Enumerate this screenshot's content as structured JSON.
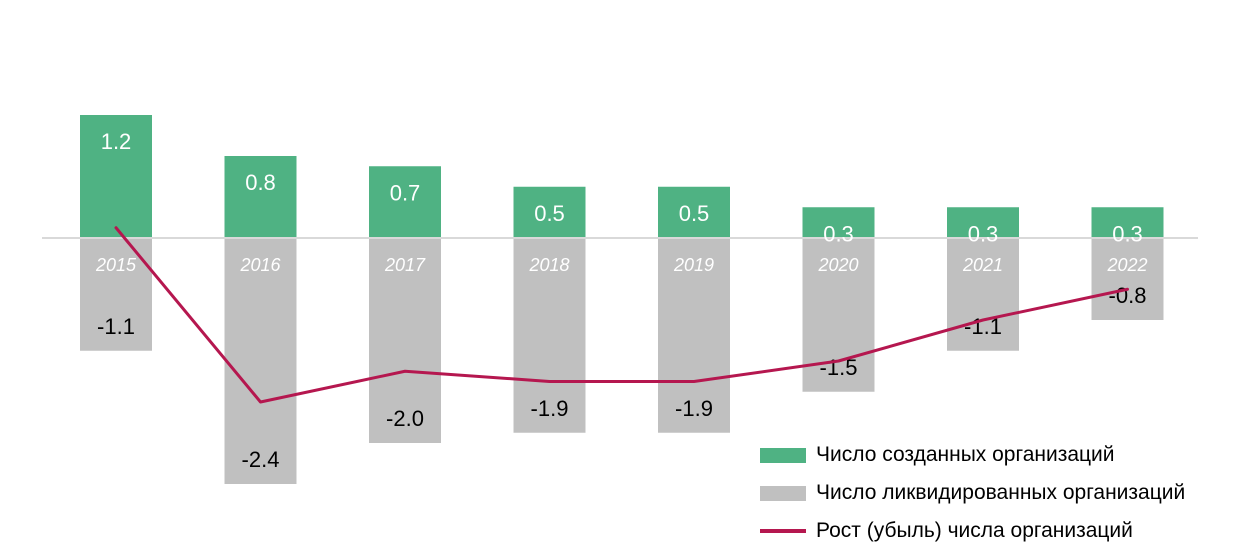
{
  "chart_data": {
    "type": "bar",
    "categories": [
      "2015",
      "2016",
      "2017",
      "2018",
      "2019",
      "2020",
      "2021",
      "2022"
    ],
    "series": [
      {
        "name": "Число созданных организаций",
        "kind": "bar",
        "color": "#4fb283",
        "values": [
          1.2,
          0.8,
          0.7,
          0.5,
          0.5,
          0.3,
          0.3,
          0.3
        ],
        "labels": [
          "1.2",
          "0.8",
          "0.7",
          "0.5",
          "0.5",
          "0.3",
          "0.3",
          "0.3"
        ]
      },
      {
        "name": "Число ликвидированных организаций",
        "kind": "bar",
        "color": "#c0c0c0",
        "values": [
          -1.1,
          -2.4,
          -2.0,
          -1.9,
          -1.9,
          -1.5,
          -1.1,
          -0.8
        ],
        "labels": [
          "-1.1",
          "-2.4",
          "-2.0",
          "-1.9",
          "-1.9",
          "-1.5",
          "-1.1",
          "-0.8"
        ]
      },
      {
        "name": "Рост (убыль) числа организаций",
        "kind": "line",
        "color": "#b5174f",
        "values": [
          0.1,
          -1.6,
          -1.3,
          -1.4,
          -1.4,
          -1.2,
          -0.8,
          -0.5
        ]
      }
    ],
    "ylim": [
      -2.4,
      1.2
    ],
    "grid": false,
    "legend_position": "bottom-right",
    "tick_label_color": "#ffffff",
    "axis_color": "#d9d9d9"
  }
}
